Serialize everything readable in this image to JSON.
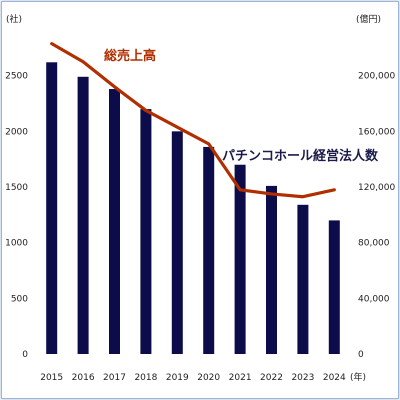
{
  "chart_data": {
    "type": "bar",
    "categories": [
      "2015",
      "2016",
      "2017",
      "2018",
      "2019",
      "2020",
      "2021",
      "2022",
      "2023",
      "2024"
    ],
    "x_unit_label": "(年)",
    "series": [
      {
        "name": "パチンコホール経営法人数",
        "type": "bar",
        "axis": "left",
        "color": "#0c0c4a",
        "values": [
          2620,
          2490,
          2380,
          2200,
          2000,
          1860,
          1700,
          1510,
          1340,
          1200
        ]
      },
      {
        "name": "総売上高",
        "type": "line",
        "axis": "right",
        "color": "#b02f00",
        "values": [
          223000,
          210000,
          192000,
          175000,
          163000,
          151000,
          118000,
          115000,
          113000,
          118000
        ]
      }
    ],
    "left_axis": {
      "unit_label": "(社)",
      "ylim": [
        0,
        3000
      ],
      "ticks": [
        "0",
        "500",
        "1000",
        "1500",
        "2000",
        "2500"
      ]
    },
    "right_axis": {
      "unit_label": "(億円)",
      "ylim": [
        0,
        240000
      ],
      "ticks": [
        "0",
        "40,000",
        "80,000",
        "120,000",
        "160,000",
        "200,000"
      ]
    },
    "annotations": {
      "sales_label": "総売上高",
      "count_label": "パチンコホール経営法人数"
    },
    "grid": false
  }
}
